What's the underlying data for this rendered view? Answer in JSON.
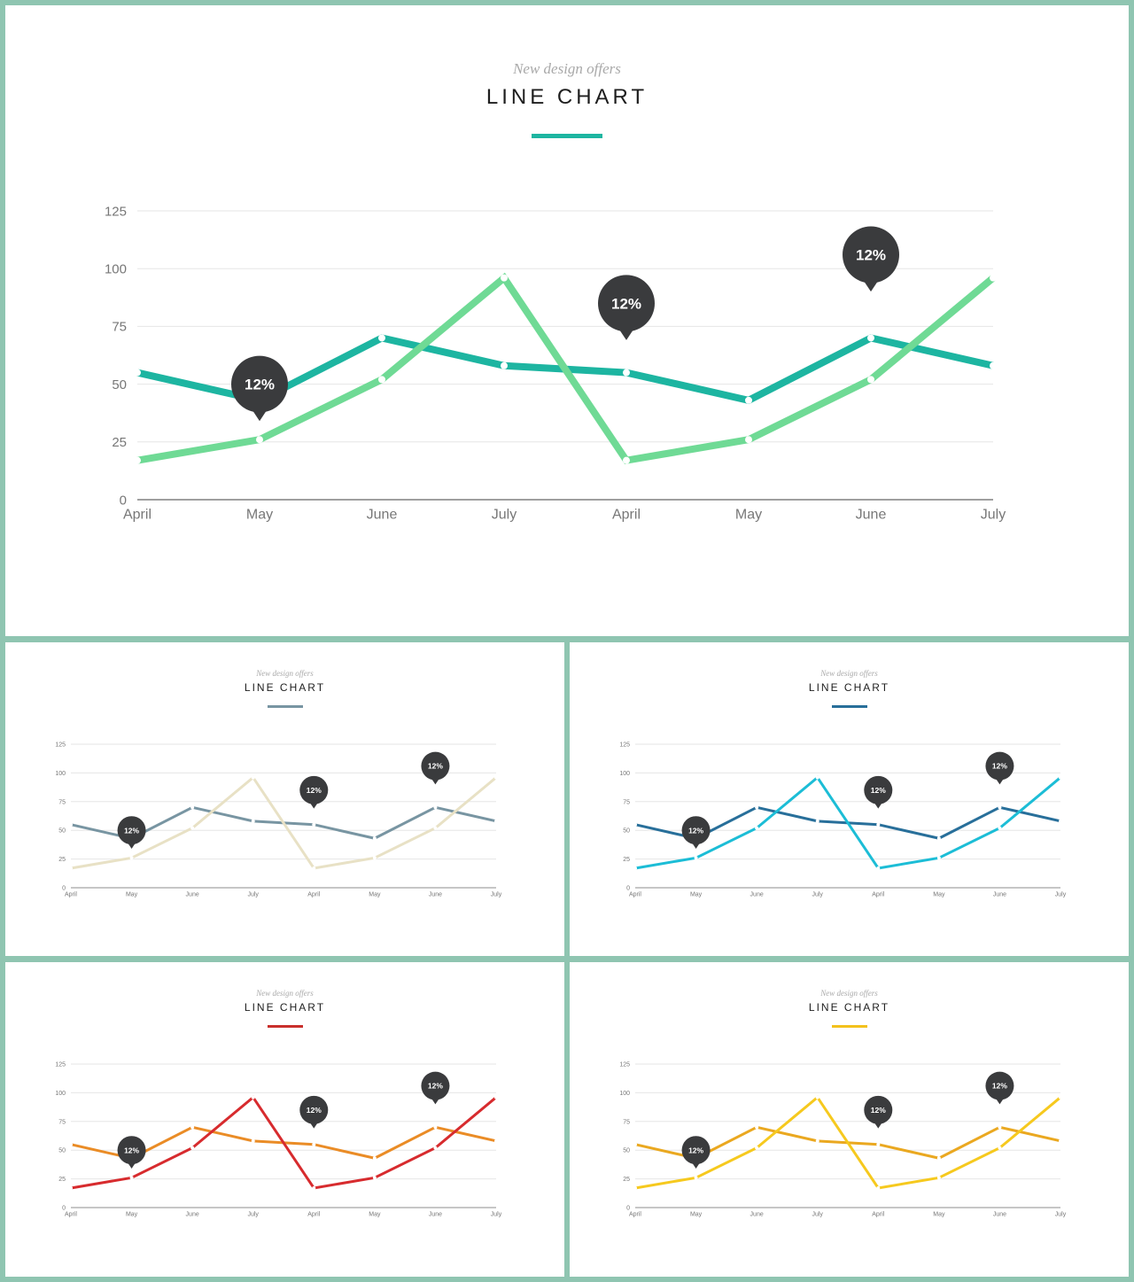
{
  "colors": {
    "page_background": "#8fc5b1",
    "axis_text": "#777777",
    "gridline": "#e6e6e6",
    "bubble": "#3a3b3d"
  },
  "chart_data": [
    {
      "type": "line",
      "subtitle": "New design offers",
      "title": "LINE CHART",
      "accent": "#1db5a1",
      "categories": [
        "April",
        "May",
        "June",
        "July",
        "April",
        "May",
        "June",
        "July"
      ],
      "y_ticks": [
        0,
        25,
        50,
        75,
        100,
        125
      ],
      "ylim": [
        0,
        125
      ],
      "grid": true,
      "series": [
        {
          "color": "#1db5a1",
          "values": [
            55,
            43,
            70,
            58,
            55,
            43,
            70,
            58
          ]
        },
        {
          "color": "#6fda95",
          "values": [
            17,
            26,
            52,
            96,
            17,
            26,
            52,
            96
          ]
        }
      ],
      "callouts": [
        {
          "label": "12%",
          "category_index": 1,
          "y": 50
        },
        {
          "label": "12%",
          "category_index": 4,
          "y": 85
        },
        {
          "label": "12%",
          "category_index": 6,
          "y": 106
        }
      ]
    },
    {
      "type": "line",
      "subtitle": "New design offers",
      "title": "LINE CHART",
      "accent": "#7895a2",
      "categories": [
        "April",
        "May",
        "June",
        "July",
        "April",
        "May",
        "June",
        "July"
      ],
      "y_ticks": [
        0,
        25,
        50,
        75,
        100,
        125
      ],
      "ylim": [
        0,
        125
      ],
      "grid": true,
      "series": [
        {
          "color": "#7895a2",
          "values": [
            55,
            43,
            70,
            58,
            55,
            43,
            70,
            58
          ]
        },
        {
          "color": "#e8e1c5",
          "values": [
            17,
            26,
            52,
            96,
            17,
            26,
            52,
            96
          ]
        }
      ],
      "callouts": [
        {
          "label": "12%",
          "category_index": 1,
          "y": 50
        },
        {
          "label": "12%",
          "category_index": 4,
          "y": 85
        },
        {
          "label": "12%",
          "category_index": 6,
          "y": 106
        }
      ]
    },
    {
      "type": "line",
      "subtitle": "New design offers",
      "title": "LINE CHART",
      "accent": "#286f9a",
      "categories": [
        "April",
        "May",
        "June",
        "July",
        "April",
        "May",
        "June",
        "July"
      ],
      "y_ticks": [
        0,
        25,
        50,
        75,
        100,
        125
      ],
      "ylim": [
        0,
        125
      ],
      "grid": true,
      "series": [
        {
          "color": "#286f9a",
          "values": [
            55,
            43,
            70,
            58,
            55,
            43,
            70,
            58
          ]
        },
        {
          "color": "#1cbdd6",
          "values": [
            17,
            26,
            52,
            96,
            17,
            26,
            52,
            96
          ]
        }
      ],
      "callouts": [
        {
          "label": "12%",
          "category_index": 1,
          "y": 50
        },
        {
          "label": "12%",
          "category_index": 4,
          "y": 85
        },
        {
          "label": "12%",
          "category_index": 6,
          "y": 106
        }
      ]
    },
    {
      "type": "line",
      "subtitle": "New design offers",
      "title": "LINE CHART",
      "accent": "#c9302c",
      "categories": [
        "April",
        "May",
        "June",
        "July",
        "April",
        "May",
        "June",
        "July"
      ],
      "y_ticks": [
        0,
        25,
        50,
        75,
        100,
        125
      ],
      "ylim": [
        0,
        125
      ],
      "grid": true,
      "series": [
        {
          "color": "#ea8c26",
          "values": [
            55,
            43,
            70,
            58,
            55,
            43,
            70,
            58
          ]
        },
        {
          "color": "#d72b2e",
          "values": [
            17,
            26,
            52,
            96,
            17,
            26,
            52,
            96
          ]
        }
      ],
      "callouts": [
        {
          "label": "12%",
          "category_index": 1,
          "y": 50
        },
        {
          "label": "12%",
          "category_index": 4,
          "y": 85
        },
        {
          "label": "12%",
          "category_index": 6,
          "y": 106
        }
      ]
    },
    {
      "type": "line",
      "subtitle": "New design offers",
      "title": "LINE CHART",
      "accent": "#f3c11c",
      "categories": [
        "April",
        "May",
        "June",
        "July",
        "April",
        "May",
        "June",
        "July"
      ],
      "y_ticks": [
        0,
        25,
        50,
        75,
        100,
        125
      ],
      "ylim": [
        0,
        125
      ],
      "grid": true,
      "series": [
        {
          "color": "#eaa820",
          "values": [
            55,
            43,
            70,
            58,
            55,
            43,
            70,
            58
          ]
        },
        {
          "color": "#f6c91e",
          "values": [
            17,
            26,
            52,
            96,
            17,
            26,
            52,
            96
          ]
        }
      ],
      "callouts": [
        {
          "label": "12%",
          "category_index": 1,
          "y": 50
        },
        {
          "label": "12%",
          "category_index": 4,
          "y": 85
        },
        {
          "label": "12%",
          "category_index": 6,
          "y": 106
        }
      ]
    }
  ]
}
